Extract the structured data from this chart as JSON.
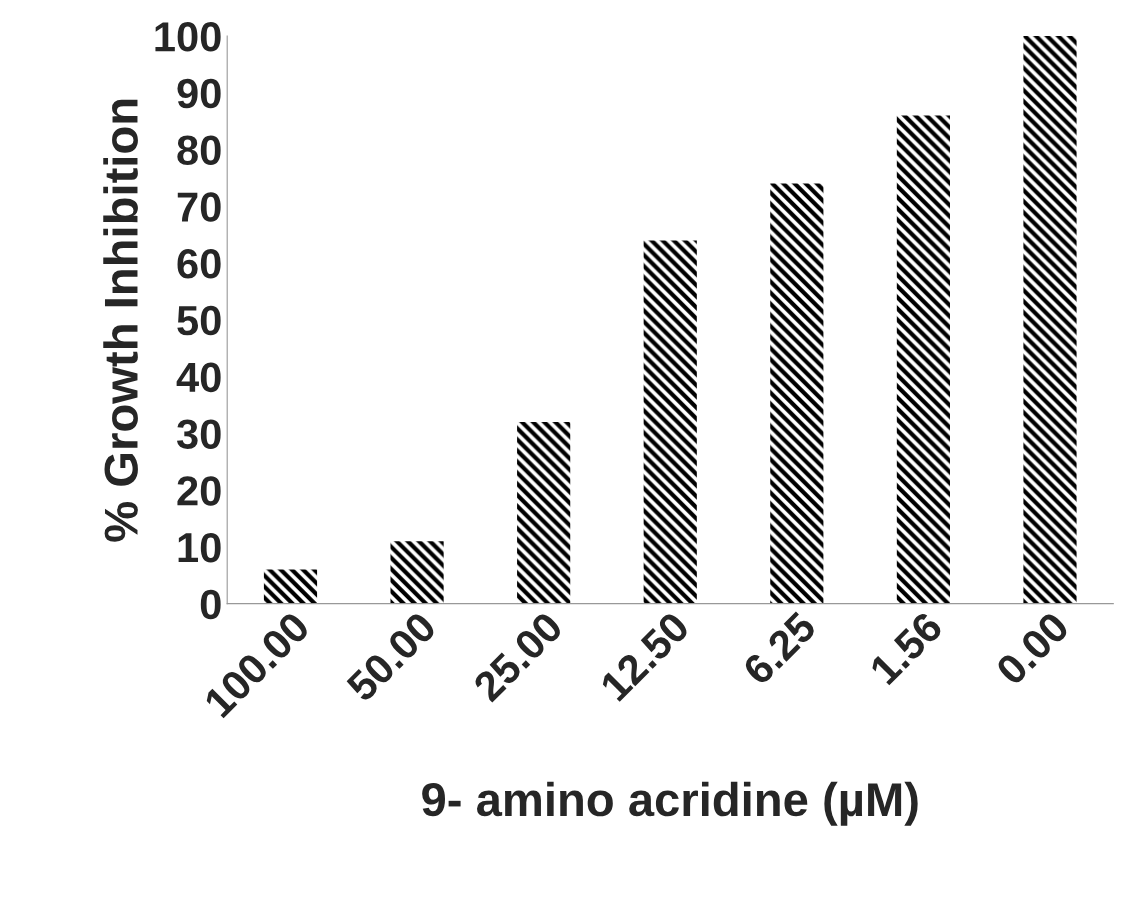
{
  "chart_data": {
    "type": "bar",
    "xlabel": "9- amino acridine (µM)",
    "ylabel": "% Growth Inhibition",
    "categories": [
      "100.00",
      "50.00",
      "25.00",
      "12.50",
      "6.25",
      "1.56",
      "0.00"
    ],
    "values": [
      6,
      11,
      32,
      64,
      74,
      86,
      100
    ],
    "color": "#000000",
    "ylim": [
      0,
      100
    ],
    "yticks": [
      0,
      10,
      20,
      30,
      40,
      50,
      60,
      70,
      80,
      90,
      100
    ],
    "grid": false,
    "legend": false
  }
}
